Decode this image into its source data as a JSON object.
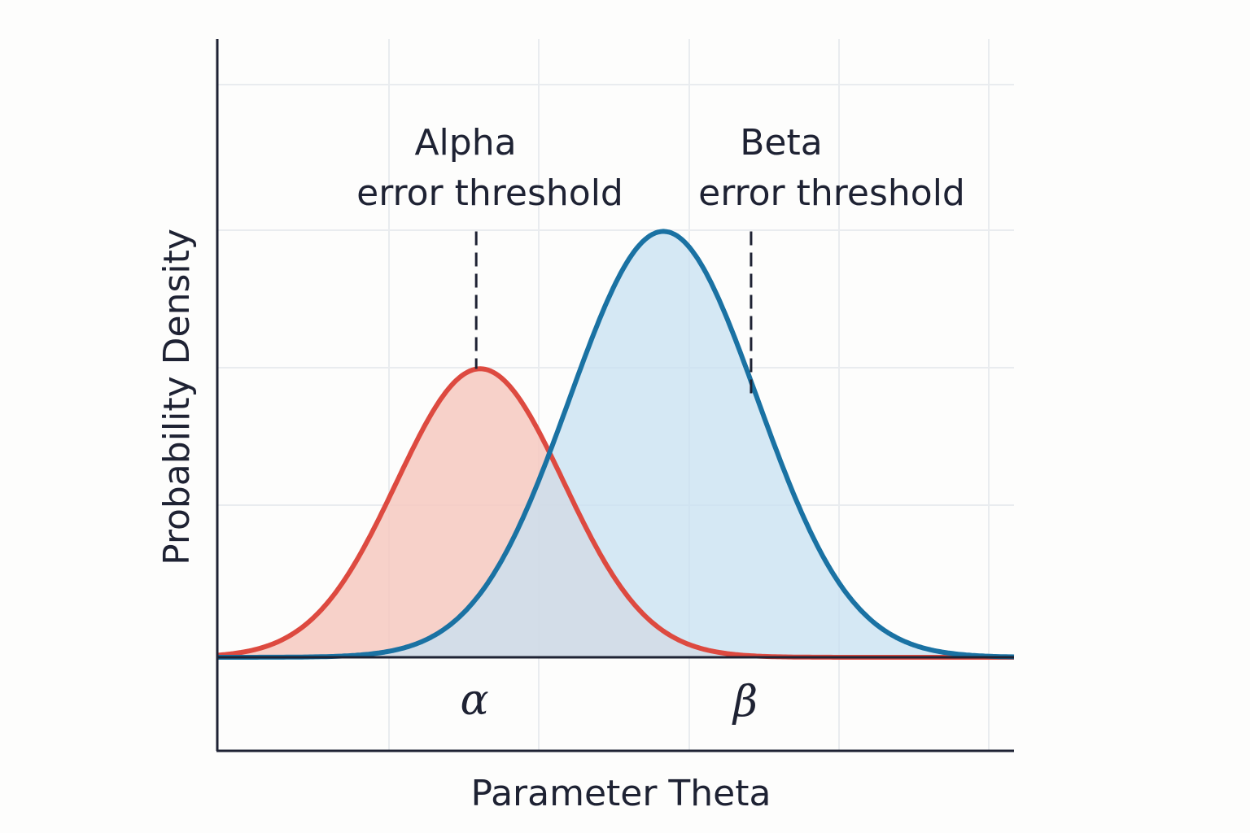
{
  "chart_data": {
    "type": "area",
    "title": "",
    "xlabel": "Parameter Theta",
    "ylabel": "Probability Density",
    "xlim": [
      0,
      10
    ],
    "ylim": [
      0,
      4.5
    ],
    "grid": true,
    "legend": "none",
    "series": [
      {
        "color": "#dd4a40",
        "fill": "#f6c9c0",
        "mean": 3.3,
        "sd": 1.05,
        "peak": 2.1
      },
      {
        "color": "#1a72a3",
        "fill": "#c7e0f1",
        "mean": 5.6,
        "sd": 1.18,
        "peak": 3.1
      }
    ],
    "annotations": [
      {
        "line1": "Alpha",
        "line2": "error threshold",
        "x": 3.25,
        "y_top": 3.1,
        "y_bottom": 2.1,
        "symbol": "α"
      },
      {
        "line1": "Beta",
        "line2": "error threshold",
        "x": 6.7,
        "y_top": 3.1,
        "y_bottom": 1.9,
        "symbol": "β"
      }
    ]
  }
}
